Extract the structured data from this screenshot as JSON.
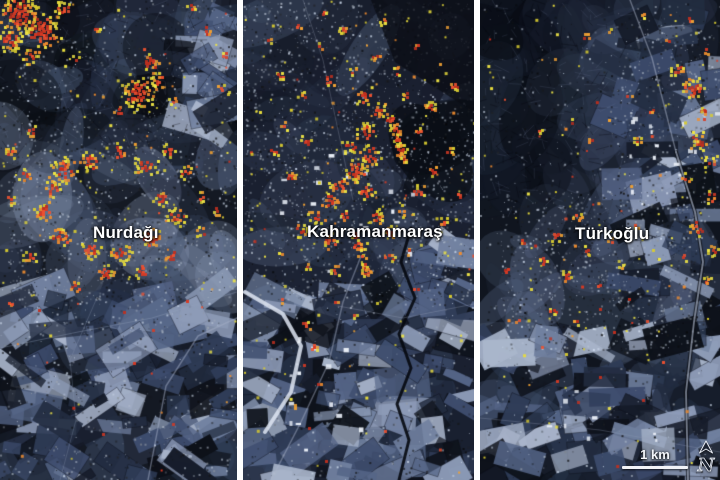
{
  "figure": {
    "type": "satellite-damage-map",
    "panels": [
      {
        "id": "nurdagi",
        "label": "Nurdağı"
      },
      {
        "id": "kahramanmaras",
        "label": "Kahramanmaraş"
      },
      {
        "id": "turkoglu",
        "label": "Türkoğlu"
      }
    ],
    "scale_bar": {
      "label": "1 km"
    },
    "north_arrow": {
      "label": "N"
    },
    "colors": {
      "divider": "#ffffff",
      "label_text": "#ffffff",
      "damage_severe": "#d83a24",
      "damage_moderate": "#f08c2e",
      "damage_light": "#e8dc3c",
      "terrain_dark": "#12161f",
      "terrain_mid": "#3c4a66",
      "terrain_light": "#93a0bc"
    }
  }
}
